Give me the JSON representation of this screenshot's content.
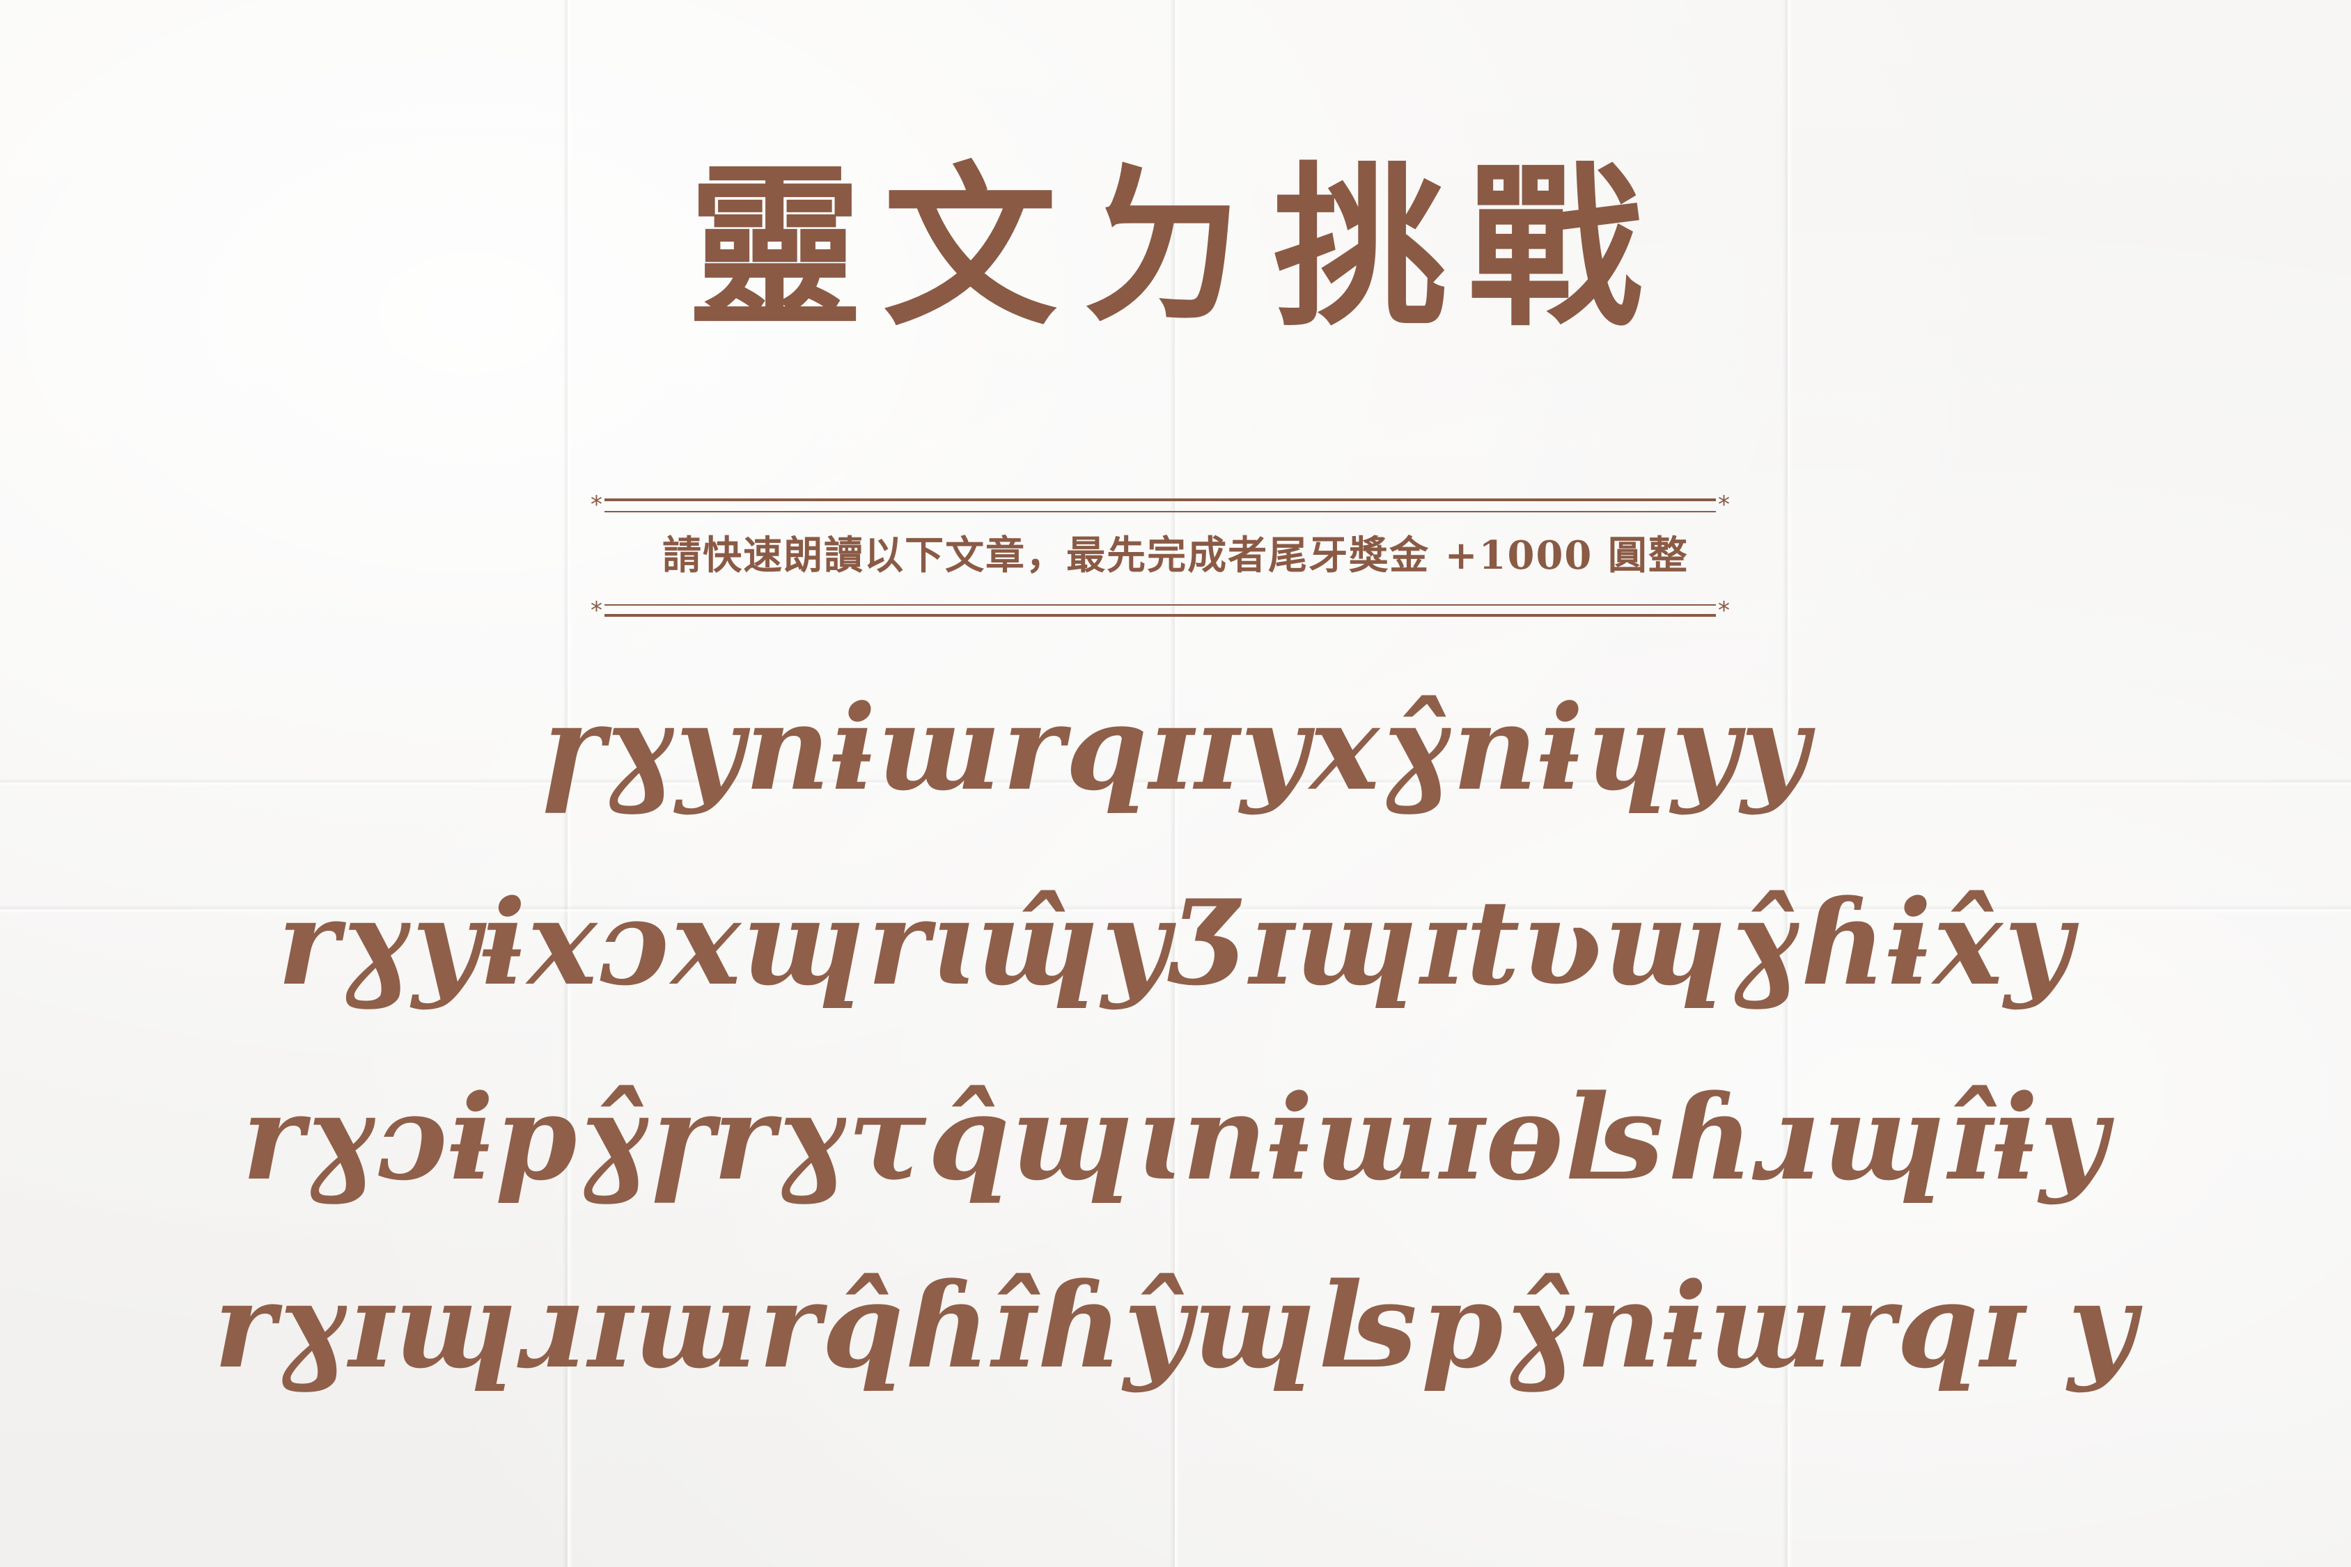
{
  "poster": {
    "title": "靈文ㄉ挑戰",
    "subtitle": "請快速朗讀以下文章，最先完成者尾牙獎金 +1000 圓整",
    "ornament": "*",
    "script_lines": [
      "ɼɣynɨɯrqɪɪyxɣ̂nɨɥyy",
      "rɣyɨxɔxɰrɩɰ̂yƷɪɰɪtʋɰɣ̂ɦɨx̂y",
      "rɣɔɨpɣ̂ɼrɣτq̂ɰɩnɨɯɪɵʪɦɹɰɪ̂ɨy",
      "rɣɪɰɹɪɯrq̂ɦɪ̂ɦŷɰʪpɣ̂nɨɯrqɪ y"
    ]
  },
  "colors": {
    "ink": "#8a5a45",
    "paper": "#f4f3f1"
  }
}
